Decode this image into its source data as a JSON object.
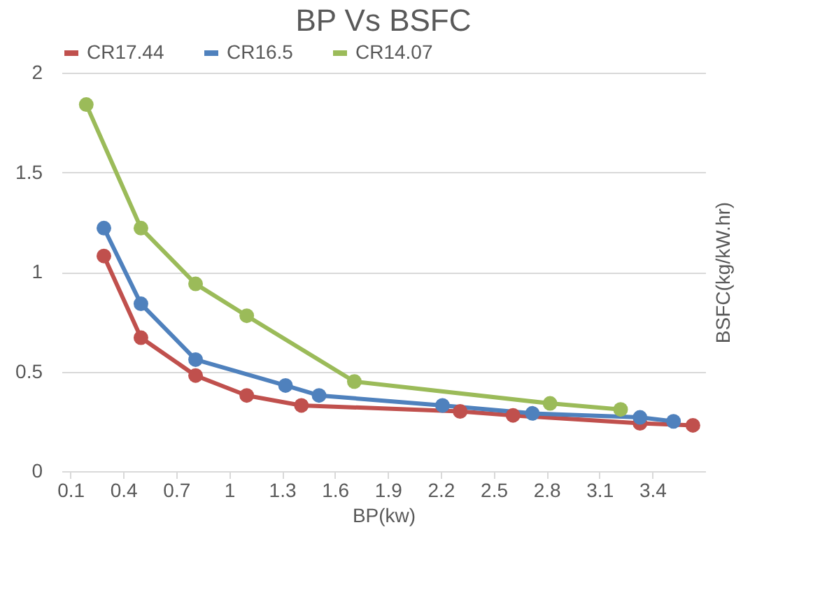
{
  "chart_data": {
    "type": "line",
    "title": "BP Vs BSFC",
    "xlabel": "BP(kw)",
    "ylabel": "BSFC(kg/kW.hr)",
    "xlim": [
      0.05,
      3.7
    ],
    "xticks": [
      0.1,
      0.4,
      0.7,
      1,
      1.3,
      1.6,
      1.9,
      2.2,
      2.5,
      2.8,
      3.1,
      3.4
    ],
    "ylim": [
      0,
      2
    ],
    "yticks": [
      0,
      0.5,
      1,
      1.5,
      2
    ],
    "grid": "y",
    "legend": "top",
    "marker": "circle",
    "line_style": "solid",
    "series": [
      {
        "name": "CR17.44",
        "color": "#c0504d",
        "x": [
          0.29,
          0.5,
          0.81,
          1.1,
          1.41,
          2.31,
          2.61,
          3.33,
          3.63
        ],
        "values": [
          1.08,
          0.67,
          0.48,
          0.38,
          0.33,
          0.3,
          0.28,
          0.24,
          0.23
        ]
      },
      {
        "name": "CR16.5",
        "color": "#4f81bd",
        "x": [
          0.29,
          0.5,
          0.81,
          1.32,
          1.51,
          2.21,
          2.72,
          3.33,
          3.52
        ],
        "values": [
          1.22,
          0.84,
          0.56,
          0.43,
          0.38,
          0.33,
          0.29,
          0.27,
          0.25
        ]
      },
      {
        "name": "CR14.07",
        "color": "#9bbb59",
        "x": [
          0.19,
          0.5,
          0.81,
          1.1,
          1.71,
          2.82,
          3.22
        ],
        "values": [
          1.84,
          1.22,
          0.94,
          0.78,
          0.45,
          0.34,
          0.31
        ]
      }
    ]
  }
}
